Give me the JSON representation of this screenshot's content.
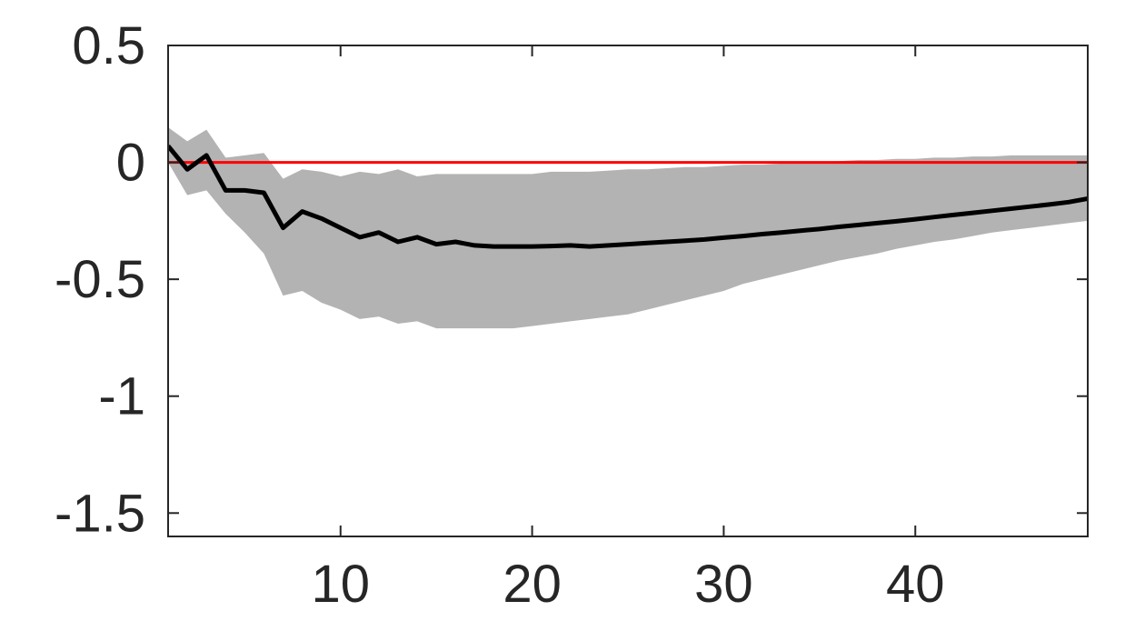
{
  "chart_data": {
    "type": "line",
    "title": "",
    "xlabel": "",
    "ylabel": "",
    "xlim": [
      1,
      49
    ],
    "ylim": [
      -1.6,
      0.5
    ],
    "grid": false,
    "legend": "none",
    "x_ticks": [
      10,
      20,
      30,
      40
    ],
    "x_tick_labels": [
      "10",
      "20",
      "30",
      "40"
    ],
    "y_ticks": [
      0.5,
      0,
      -0.5,
      -1,
      -1.5
    ],
    "y_tick_labels": [
      "0.5",
      "0",
      "-0.5",
      "-1",
      "-1.5"
    ],
    "colors": {
      "line": "#000000",
      "band": "#b3b3b3",
      "zero_line": "#ff0000"
    },
    "zero_line": 0,
    "series": [
      {
        "type": "line",
        "x": [
          1,
          2,
          3,
          4,
          5,
          6,
          7,
          8,
          9,
          10,
          11,
          12,
          13,
          14,
          15,
          16,
          17,
          18,
          19,
          20,
          21,
          22,
          23,
          24,
          25,
          26,
          27,
          28,
          29,
          30,
          31,
          32,
          33,
          34,
          35,
          36,
          37,
          38,
          39,
          40,
          41,
          42,
          43,
          44,
          45,
          46,
          47,
          48,
          49
        ],
        "values": [
          0.07,
          -0.03,
          0.03,
          -0.12,
          -0.12,
          -0.13,
          -0.28,
          -0.21,
          -0.24,
          -0.28,
          -0.32,
          -0.3,
          -0.34,
          -0.32,
          -0.35,
          -0.34,
          -0.355,
          -0.36,
          -0.36,
          -0.36,
          -0.358,
          -0.355,
          -0.36,
          -0.355,
          -0.35,
          -0.345,
          -0.34,
          -0.335,
          -0.33,
          -0.322,
          -0.315,
          -0.307,
          -0.3,
          -0.292,
          -0.285,
          -0.276,
          -0.268,
          -0.26,
          -0.252,
          -0.243,
          -0.234,
          -0.225,
          -0.216,
          -0.207,
          -0.198,
          -0.189,
          -0.18,
          -0.17,
          -0.155
        ]
      },
      {
        "type": "band",
        "x": [
          1,
          2,
          3,
          4,
          5,
          6,
          7,
          8,
          9,
          10,
          11,
          12,
          13,
          14,
          15,
          16,
          17,
          18,
          19,
          20,
          21,
          22,
          23,
          24,
          25,
          26,
          27,
          28,
          29,
          30,
          31,
          32,
          33,
          34,
          35,
          36,
          37,
          38,
          39,
          40,
          41,
          42,
          43,
          44,
          45,
          46,
          47,
          48,
          49
        ],
        "upper": [
          0.15,
          0.09,
          0.14,
          0.02,
          0.03,
          0.04,
          -0.07,
          -0.03,
          -0.04,
          -0.06,
          -0.04,
          -0.05,
          -0.03,
          -0.06,
          -0.05,
          -0.05,
          -0.05,
          -0.05,
          -0.05,
          -0.05,
          -0.04,
          -0.04,
          -0.04,
          -0.035,
          -0.03,
          -0.03,
          -0.025,
          -0.02,
          -0.02,
          -0.015,
          -0.01,
          -0.01,
          -0.005,
          0,
          0,
          0.005,
          0.01,
          0.01,
          0.015,
          0.015,
          0.02,
          0.02,
          0.025,
          0.025,
          0.03,
          0.03,
          0.03,
          0.03,
          0.03
        ],
        "lower": [
          0.0,
          -0.14,
          -0.12,
          -0.22,
          -0.3,
          -0.39,
          -0.57,
          -0.55,
          -0.6,
          -0.63,
          -0.67,
          -0.66,
          -0.69,
          -0.68,
          -0.71,
          -0.71,
          -0.71,
          -0.71,
          -0.71,
          -0.7,
          -0.69,
          -0.68,
          -0.67,
          -0.66,
          -0.65,
          -0.63,
          -0.61,
          -0.59,
          -0.57,
          -0.55,
          -0.52,
          -0.5,
          -0.48,
          -0.46,
          -0.44,
          -0.42,
          -0.405,
          -0.39,
          -0.37,
          -0.355,
          -0.34,
          -0.33,
          -0.315,
          -0.3,
          -0.29,
          -0.28,
          -0.27,
          -0.26,
          -0.25
        ]
      }
    ]
  }
}
